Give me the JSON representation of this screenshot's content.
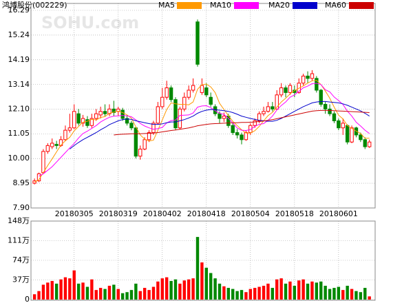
{
  "watermark": "SOHU.com",
  "chart_data": [
    {
      "type": "candlestick",
      "title": "鸿博股份(002229)",
      "up_color": "#ff0000",
      "down_color": "#008800",
      "grid": true,
      "xlim": [
        -0.8,
        77.3
      ],
      "ylim": [
        7.9,
        16.29
      ],
      "xticks": [
        {
          "value": 9,
          "label": "20180305"
        },
        {
          "value": 19,
          "label": "20180319"
        },
        {
          "value": 29,
          "label": "20180402"
        },
        {
          "value": 39,
          "label": "20180418"
        },
        {
          "value": 49,
          "label": "20180504"
        },
        {
          "value": 59,
          "label": "20180518"
        },
        {
          "value": 69,
          "label": "20180601"
        }
      ],
      "yticks": [
        16.29,
        15.24,
        14.19,
        13.14,
        {
          "value": 12.1,
          "label": "12.10"
        },
        11.05,
        {
          "value": 10,
          "label": "10.00"
        },
        8.95,
        {
          "value": 7.9,
          "label": "7.90"
        }
      ],
      "open": [
        8.95,
        9.05,
        9.4,
        10.3,
        10.5,
        10.6,
        10.55,
        10.8,
        11.2,
        11.3,
        11.9,
        11.5,
        11.65,
        11.4,
        11.7,
        11.85,
        12.0,
        11.9,
        12.1,
        12.0,
        12.05,
        11.7,
        11.5,
        11.3,
        10.1,
        10.4,
        10.8,
        11.1,
        11.5,
        12.2,
        12.6,
        13.0,
        12.5,
        11.3,
        12.1,
        12.6,
        12.9,
        15.8,
        12.8,
        13.0,
        12.6,
        12.2,
        11.9,
        11.7,
        11.8,
        11.4,
        11.1,
        11.0,
        10.8,
        11.1,
        11.4,
        11.6,
        11.9,
        12.0,
        12.2,
        12.1,
        12.7,
        13.0,
        12.8,
        12.9,
        12.8,
        13.2,
        13.5,
        13.4,
        13.4,
        12.9,
        12.3,
        12.1,
        11.9,
        11.6,
        11.3,
        11.4,
        10.7,
        11.3,
        11.0,
        10.8,
        10.5
      ],
      "high": [
        9.15,
        9.4,
        10.4,
        10.65,
        10.85,
        10.75,
        10.95,
        11.4,
        11.9,
        12.3,
        12.1,
        11.85,
        11.8,
        11.9,
        12.1,
        12.2,
        12.3,
        12.3,
        12.45,
        12.2,
        12.15,
        11.85,
        11.6,
        11.35,
        10.55,
        10.9,
        11.2,
        11.6,
        12.4,
        13.0,
        13.3,
        13.1,
        12.6,
        12.2,
        12.8,
        13.1,
        13.4,
        15.9,
        13.4,
        13.2,
        12.8,
        12.3,
        12.0,
        11.95,
        11.9,
        11.5,
        11.25,
        11.1,
        11.2,
        11.5,
        11.7,
        12.0,
        12.2,
        12.4,
        12.4,
        12.9,
        13.2,
        13.1,
        13.2,
        13.1,
        13.4,
        13.6,
        13.7,
        13.75,
        13.5,
        12.95,
        12.4,
        12.3,
        12.0,
        11.7,
        11.7,
        11.45,
        11.4,
        11.35,
        11.1,
        10.9,
        10.8
      ],
      "low": [
        8.9,
        9.0,
        9.4,
        10.2,
        10.4,
        10.4,
        10.5,
        10.75,
        11.1,
        11.25,
        11.4,
        11.35,
        11.3,
        11.3,
        11.6,
        11.7,
        11.8,
        11.8,
        11.8,
        11.8,
        11.6,
        11.4,
        11.2,
        10.0,
        9.95,
        10.35,
        10.7,
        11.0,
        11.45,
        12.1,
        12.5,
        12.4,
        11.2,
        11.25,
        12.0,
        12.5,
        12.8,
        13.9,
        12.7,
        12.6,
        12.2,
        11.8,
        11.5,
        11.55,
        11.3,
        11.0,
        10.85,
        10.6,
        10.75,
        11.0,
        11.3,
        11.5,
        11.8,
        11.95,
        12.0,
        12.05,
        12.6,
        12.6,
        12.7,
        12.6,
        12.75,
        13.1,
        13.2,
        13.3,
        12.8,
        12.2,
        11.9,
        11.8,
        11.5,
        11.2,
        11.0,
        10.6,
        10.65,
        10.9,
        10.7,
        10.4,
        10.45
      ],
      "close": [
        9.05,
        9.35,
        10.3,
        10.55,
        10.65,
        10.55,
        10.8,
        11.2,
        11.3,
        12.0,
        11.5,
        11.7,
        11.4,
        11.7,
        11.9,
        12.0,
        11.9,
        12.1,
        11.95,
        12.1,
        11.7,
        11.5,
        11.3,
        10.1,
        10.4,
        10.8,
        11.1,
        11.5,
        12.2,
        12.6,
        13.0,
        12.5,
        11.3,
        12.1,
        12.6,
        12.9,
        13.1,
        14.0,
        13.1,
        12.7,
        12.3,
        11.9,
        11.7,
        11.8,
        11.4,
        11.1,
        11.0,
        10.8,
        11.1,
        11.4,
        11.6,
        11.9,
        12.0,
        12.2,
        12.1,
        12.7,
        13.0,
        12.8,
        13.1,
        12.8,
        13.2,
        13.5,
        13.4,
        13.6,
        12.9,
        12.3,
        12.1,
        11.9,
        11.6,
        11.3,
        11.5,
        10.7,
        11.3,
        11.0,
        10.8,
        10.5,
        10.7
      ],
      "series": [
        {
          "name": "MA5",
          "color": "#ff9900",
          "values": [
            9.0,
            9.1,
            9.4,
            9.7,
            9.98,
            10.28,
            10.57,
            10.75,
            10.9,
            11.17,
            11.36,
            11.54,
            11.58,
            11.66,
            11.64,
            11.74,
            11.78,
            11.92,
            11.97,
            12.01,
            11.95,
            11.85,
            11.71,
            11.34,
            11.0,
            10.82,
            10.74,
            10.78,
            11.2,
            11.64,
            12.08,
            12.36,
            12.32,
            12.3,
            12.3,
            12.28,
            12.4,
            12.94,
            13.14,
            13.16,
            13.04,
            12.8,
            12.34,
            12.08,
            11.82,
            11.58,
            11.4,
            11.22,
            11.08,
            11.08,
            11.18,
            11.36,
            11.6,
            11.82,
            11.96,
            12.18,
            12.4,
            12.56,
            12.74,
            12.88,
            12.98,
            13.08,
            13.2,
            13.3,
            13.32,
            13.14,
            12.86,
            12.56,
            12.18,
            11.84,
            11.68,
            11.4,
            11.28,
            11.16,
            11.06,
            10.86,
            10.86
          ]
        },
        {
          "name": "MA10",
          "color": "#ff00ff",
          "values": [
            null,
            9.25,
            9.35,
            9.5,
            9.65,
            9.85,
            10.05,
            10.25,
            10.45,
            10.64,
            10.87,
            11.06,
            11.16,
            11.28,
            11.4,
            11.55,
            11.66,
            11.75,
            11.8,
            11.81,
            11.83,
            11.81,
            11.77,
            11.64,
            11.49,
            11.38,
            11.3,
            11.24,
            11.27,
            11.32,
            11.51,
            11.61,
            11.63,
            11.83,
            11.84,
            11.85,
            11.93,
            12.18,
            12.23,
            12.24,
            12.16,
            12.03,
            11.92,
            11.87,
            11.7,
            11.51,
            11.29,
            11.2,
            11.19,
            11.23,
            11.36,
            11.45,
            11.48,
            11.62,
            11.8,
            12.06,
            12.25,
            12.4,
            12.6,
            12.7,
            12.85,
            13.0,
            13.07,
            13.18,
            13.19,
            13.14,
            12.92,
            12.83,
            12.61,
            12.46,
            12.29,
            12.01,
            11.8,
            11.54,
            11.38,
            11.2,
            11.06
          ]
        },
        {
          "name": "MA20",
          "color": "#0000cc",
          "values": [
            null,
            null,
            null,
            null,
            null,
            null,
            null,
            null,
            10.4,
            10.55,
            10.68,
            10.8,
            10.9,
            11.0,
            11.1,
            11.22,
            11.32,
            11.44,
            11.52,
            11.6,
            11.65,
            11.68,
            11.66,
            11.6,
            11.56,
            11.52,
            11.48,
            11.45,
            11.45,
            11.47,
            11.52,
            11.55,
            11.55,
            11.6,
            11.65,
            11.72,
            11.8,
            11.92,
            12.0,
            12.05,
            12.08,
            12.07,
            12.05,
            12.03,
            12.0,
            11.95,
            11.88,
            11.8,
            11.75,
            11.7,
            11.66,
            11.62,
            11.6,
            11.58,
            11.58,
            11.62,
            11.7,
            11.8,
            11.9,
            12.0,
            12.1,
            12.2,
            12.28,
            12.36,
            12.4,
            12.42,
            12.42,
            12.4,
            12.38,
            12.36,
            12.32,
            12.26,
            12.18,
            12.1,
            12.02,
            11.92,
            11.8
          ]
        },
        {
          "name": "MA60",
          "color": "#cc0000",
          "values": [
            null,
            null,
            null,
            null,
            null,
            null,
            null,
            null,
            null,
            null,
            null,
            null,
            null,
            null,
            null,
            null,
            null,
            null,
            11.0,
            11.02,
            11.03,
            11.04,
            11.05,
            11.05,
            11.05,
            11.06,
            11.07,
            11.08,
            11.1,
            11.13,
            11.16,
            11.19,
            11.21,
            11.24,
            11.27,
            11.3,
            11.34,
            11.39,
            11.42,
            11.45,
            11.47,
            11.48,
            11.49,
            11.5,
            11.51,
            11.52,
            11.52,
            11.53,
            11.53,
            11.54,
            11.55,
            11.57,
            11.59,
            11.62,
            11.65,
            11.69,
            11.73,
            11.77,
            11.81,
            11.85,
            11.89,
            11.93,
            11.97,
            12.01,
            12.03,
            12.04,
            12.04,
            12.04,
            12.03,
            12.02,
            12.01,
            12.0,
            11.99,
            11.98,
            11.97,
            11.96,
            11.95
          ]
        }
      ]
    },
    {
      "type": "bar",
      "grid": true,
      "xlim": [
        -0.8,
        77.3
      ],
      "ylim": [
        0,
        148
      ],
      "yticks": [
        {
          "value": 148,
          "label": "148万"
        },
        {
          "value": 111,
          "label": "111万"
        },
        {
          "value": 74,
          "label": "74万"
        },
        {
          "value": 37,
          "label": "37万"
        },
        0
      ],
      "values": [
        10,
        16,
        28,
        32,
        35,
        30,
        38,
        42,
        40,
        55,
        30,
        32,
        24,
        38,
        18,
        22,
        20,
        26,
        28,
        20,
        12,
        14,
        18,
        30,
        16,
        22,
        18,
        24,
        34,
        40,
        42,
        35,
        38,
        30,
        36,
        38,
        40,
        118,
        70,
        60,
        50,
        40,
        30,
        25,
        22,
        20,
        16,
        18,
        14,
        20,
        22,
        24,
        26,
        30,
        22,
        38,
        40,
        30,
        34,
        26,
        36,
        38,
        30,
        34,
        32,
        34,
        26,
        20,
        22,
        24,
        18,
        26,
        20,
        16,
        14,
        22,
        6
      ]
    }
  ]
}
